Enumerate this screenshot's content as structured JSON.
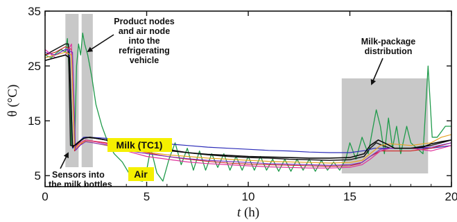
{
  "chart_data": {
    "type": "line",
    "xlabel_symbol": "t",
    "xlabel_unit": " (h)",
    "ylabel": "θ (°C)",
    "xlim": [
      0,
      20
    ],
    "ylim": [
      3,
      35
    ],
    "x_ticks": [
      "0",
      "5",
      "10",
      "15",
      "20"
    ],
    "y_ticks": [
      "5",
      "15",
      "25",
      "35"
    ],
    "shaded_regions": [
      {
        "x": [
          1.0,
          1.65
        ]
      },
      {
        "x": [
          1.8,
          2.35
        ]
      },
      {
        "x": [
          14.6,
          18.85
        ]
      }
    ],
    "annotations": {
      "product_nodes": [
        "Product nodes",
        "and air node",
        "into the",
        "refrigerating",
        "vehicle"
      ],
      "milk_package": [
        "Milk-package",
        "distribution"
      ],
      "sensors": [
        "Sensors into",
        "the milk bottles"
      ],
      "milk_tag": "Milk (TC1)",
      "air_tag": "Air"
    },
    "series": [
      {
        "color": "#1f9a4a",
        "width": 1.3,
        "values": [
          [
            0,
            27
          ],
          [
            0.3,
            26.5
          ],
          [
            0.6,
            27.5
          ],
          [
            0.8,
            28
          ],
          [
            1.0,
            27.5
          ],
          [
            1.1,
            30
          ],
          [
            1.2,
            22
          ],
          [
            1.3,
            10.5
          ],
          [
            1.45,
            10
          ],
          [
            1.55,
            25
          ],
          [
            1.65,
            29
          ],
          [
            1.75,
            27
          ],
          [
            1.85,
            31
          ],
          [
            1.95,
            29
          ],
          [
            2.1,
            27
          ],
          [
            2.3,
            23
          ],
          [
            2.5,
            18
          ],
          [
            2.8,
            14
          ],
          [
            3.1,
            11
          ],
          [
            3.4,
            9
          ],
          [
            3.8,
            7.5
          ],
          [
            4.2,
            5
          ],
          [
            4.5,
            4.2
          ],
          [
            4.8,
            4
          ],
          [
            5.0,
            6
          ],
          [
            5.2,
            10
          ],
          [
            5.5,
            5.5
          ],
          [
            5.8,
            4
          ],
          [
            6.1,
            8
          ],
          [
            6.4,
            11
          ],
          [
            6.7,
            7
          ],
          [
            7.0,
            10
          ],
          [
            7.3,
            6
          ],
          [
            7.6,
            9.5
          ],
          [
            7.9,
            6
          ],
          [
            8.2,
            9
          ],
          [
            8.5,
            6.5
          ],
          [
            8.8,
            9
          ],
          [
            9.1,
            6
          ],
          [
            9.4,
            8.5
          ],
          [
            9.7,
            6
          ],
          [
            10.0,
            8.5
          ],
          [
            10.3,
            6
          ],
          [
            10.6,
            8.5
          ],
          [
            10.9,
            6
          ],
          [
            11.2,
            8
          ],
          [
            11.5,
            5.8
          ],
          [
            11.8,
            8
          ],
          [
            12.1,
            5.8
          ],
          [
            12.4,
            8
          ],
          [
            12.7,
            6
          ],
          [
            13.0,
            8
          ],
          [
            13.3,
            5.8
          ],
          [
            13.6,
            7.8
          ],
          [
            13.9,
            6
          ],
          [
            14.2,
            7.5
          ],
          [
            14.5,
            6
          ],
          [
            14.8,
            8
          ],
          [
            15.0,
            11
          ],
          [
            15.3,
            8
          ],
          [
            15.6,
            12
          ],
          [
            15.9,
            9
          ],
          [
            16.1,
            13
          ],
          [
            16.3,
            17
          ],
          [
            16.5,
            14
          ],
          [
            16.7,
            9
          ],
          [
            16.9,
            15.5
          ],
          [
            17.1,
            10
          ],
          [
            17.3,
            14
          ],
          [
            17.5,
            9
          ],
          [
            17.8,
            14
          ],
          [
            18.0,
            11
          ],
          [
            18.3,
            10
          ],
          [
            18.6,
            9
          ],
          [
            18.85,
            25
          ],
          [
            19.05,
            12
          ],
          [
            19.3,
            12
          ],
          [
            19.5,
            13
          ],
          [
            19.7,
            14
          ],
          [
            20,
            14
          ]
        ]
      },
      {
        "color": "#1a1a1a",
        "width": 1.5,
        "values": [
          [
            0,
            27
          ],
          [
            0.5,
            28
          ],
          [
            1.0,
            29
          ],
          [
            1.15,
            29
          ],
          [
            1.25,
            10.5
          ],
          [
            1.5,
            10.5
          ],
          [
            1.8,
            11.5
          ],
          [
            2.0,
            12
          ],
          [
            2.5,
            11.8
          ],
          [
            3.0,
            11.5
          ],
          [
            4,
            11
          ],
          [
            5,
            10.5
          ],
          [
            6,
            9.8
          ],
          [
            7,
            9.2
          ],
          [
            8,
            8.8
          ],
          [
            9,
            8.5
          ],
          [
            10,
            8.3
          ],
          [
            11,
            8.2
          ],
          [
            12,
            8.0
          ],
          [
            13,
            7.9
          ],
          [
            14,
            7.8
          ],
          [
            15,
            7.9
          ],
          [
            15.7,
            8.5
          ],
          [
            16,
            10
          ],
          [
            16.3,
            11
          ],
          [
            16.6,
            10.5
          ],
          [
            17,
            10
          ],
          [
            17.5,
            10
          ],
          [
            18,
            10
          ],
          [
            18.5,
            10.3
          ],
          [
            19,
            10.5
          ],
          [
            19.5,
            11
          ],
          [
            20,
            11.5
          ]
        ]
      },
      {
        "color": "#2b2bb8",
        "width": 1.2,
        "values": [
          [
            0,
            26.5
          ],
          [
            0.5,
            27
          ],
          [
            1.0,
            28
          ],
          [
            1.2,
            28
          ],
          [
            1.35,
            10
          ],
          [
            1.6,
            11
          ],
          [
            1.9,
            12
          ],
          [
            2.2,
            12
          ],
          [
            3,
            11.8
          ],
          [
            4,
            11.5
          ],
          [
            5,
            11.2
          ],
          [
            6,
            10.8
          ],
          [
            7,
            10.5
          ],
          [
            8,
            10.2
          ],
          [
            9,
            10
          ],
          [
            10,
            9.8
          ],
          [
            11,
            9.6
          ],
          [
            12,
            9.5
          ],
          [
            13,
            9.3
          ],
          [
            14,
            9.2
          ],
          [
            15,
            9.2
          ],
          [
            15.8,
            9.6
          ],
          [
            16.2,
            10
          ],
          [
            17,
            10
          ],
          [
            18,
            10
          ],
          [
            19,
            10
          ],
          [
            20,
            10.5
          ]
        ]
      },
      {
        "color": "#d02020",
        "width": 1.1,
        "values": [
          [
            0,
            27
          ],
          [
            0.5,
            27.5
          ],
          [
            1.0,
            28.5
          ],
          [
            1.3,
            28
          ],
          [
            1.45,
            9.5
          ],
          [
            1.7,
            10.5
          ],
          [
            2.0,
            11.5
          ],
          [
            3,
            11
          ],
          [
            4,
            10
          ],
          [
            5,
            9.2
          ],
          [
            6,
            8.5
          ],
          [
            7,
            8
          ],
          [
            8,
            7.6
          ],
          [
            9,
            7.3
          ],
          [
            10,
            7.1
          ],
          [
            11,
            7
          ],
          [
            12,
            6.9
          ],
          [
            13,
            6.8
          ],
          [
            14,
            6.7
          ],
          [
            15,
            6.8
          ],
          [
            15.5,
            7.2
          ],
          [
            16,
            8.5
          ],
          [
            16.5,
            9.5
          ],
          [
            17,
            9.5
          ],
          [
            18,
            9.5
          ],
          [
            19,
            10
          ],
          [
            19.5,
            10.5
          ],
          [
            20,
            11
          ]
        ]
      },
      {
        "color": "#e0309a",
        "width": 1.2,
        "values": [
          [
            0,
            28
          ],
          [
            0.5,
            26.5
          ],
          [
            1.0,
            27
          ],
          [
            1.3,
            29
          ],
          [
            1.45,
            10
          ],
          [
            1.7,
            11
          ],
          [
            2.0,
            11.5
          ],
          [
            3,
            10.8
          ],
          [
            4,
            9.5
          ],
          [
            5,
            8.5
          ],
          [
            6,
            8
          ],
          [
            7,
            7.5
          ],
          [
            8,
            7.2
          ],
          [
            9,
            7
          ],
          [
            10,
            6.8
          ],
          [
            11,
            6.6
          ],
          [
            12,
            6.5
          ],
          [
            13,
            6.4
          ],
          [
            14,
            6.4
          ],
          [
            15,
            6.5
          ],
          [
            15.6,
            7
          ],
          [
            16,
            8
          ],
          [
            16.5,
            9.5
          ],
          [
            17,
            10
          ],
          [
            18,
            10
          ],
          [
            19,
            9.5
          ],
          [
            19.5,
            10
          ],
          [
            20,
            10.5
          ]
        ]
      },
      {
        "color": "#e6a020",
        "width": 1.2,
        "values": [
          [
            0,
            26.5
          ],
          [
            0.5,
            27
          ],
          [
            1.0,
            27.5
          ],
          [
            1.3,
            27
          ],
          [
            1.45,
            9.8
          ],
          [
            1.7,
            10.8
          ],
          [
            2.0,
            11.3
          ],
          [
            3,
            10.5
          ],
          [
            4,
            9.8
          ],
          [
            5,
            9.3
          ],
          [
            6,
            8.8
          ],
          [
            7,
            8.5
          ],
          [
            8,
            8.2
          ],
          [
            9,
            8
          ],
          [
            10,
            7.8
          ],
          [
            11,
            7.6
          ],
          [
            12,
            7.5
          ],
          [
            13,
            7.4
          ],
          [
            14,
            7.3
          ],
          [
            15,
            7.4
          ],
          [
            15.6,
            7.8
          ],
          [
            16,
            9
          ],
          [
            16.5,
            10.5
          ],
          [
            17,
            10.8
          ],
          [
            18,
            10.5
          ],
          [
            19,
            11
          ],
          [
            19.5,
            12
          ],
          [
            20,
            12.5
          ]
        ]
      },
      {
        "color": "#7a2cc0",
        "width": 1.1,
        "values": [
          [
            0,
            27.5
          ],
          [
            0.5,
            27
          ],
          [
            1.0,
            28
          ],
          [
            1.35,
            27.5
          ],
          [
            1.5,
            9.6
          ],
          [
            1.75,
            10.6
          ],
          [
            2.0,
            11.2
          ],
          [
            3,
            10.6
          ],
          [
            4,
            9.6
          ],
          [
            5,
            9
          ],
          [
            6,
            8.5
          ],
          [
            7,
            8.1
          ],
          [
            8,
            7.8
          ],
          [
            9,
            7.6
          ],
          [
            10,
            7.4
          ],
          [
            11,
            7.2
          ],
          [
            12,
            7.1
          ],
          [
            13,
            7
          ],
          [
            14,
            6.9
          ],
          [
            15,
            7
          ],
          [
            15.6,
            7.4
          ],
          [
            16,
            8.5
          ],
          [
            16.5,
            9.8
          ],
          [
            17,
            10
          ],
          [
            18,
            10
          ],
          [
            19,
            10.2
          ],
          [
            19.5,
            10.6
          ],
          [
            20,
            11
          ]
        ]
      },
      {
        "color": "#0a0a0a",
        "width": 1.6,
        "values": [
          [
            0,
            26
          ],
          [
            0.5,
            26.5
          ],
          [
            1.0,
            27
          ],
          [
            1.2,
            26.5
          ],
          [
            1.35,
            10.2
          ],
          [
            1.6,
            11
          ],
          [
            1.9,
            11.8
          ],
          [
            2.2,
            12
          ],
          [
            3,
            11.5
          ],
          [
            4,
            10.8
          ],
          [
            5,
            10.2
          ],
          [
            6,
            9.6
          ],
          [
            7,
            9.2
          ],
          [
            8,
            8.9
          ],
          [
            9,
            8.7
          ],
          [
            10,
            8.5
          ],
          [
            11,
            8.4
          ],
          [
            12,
            8.3
          ],
          [
            13,
            8.2
          ],
          [
            14,
            8.2
          ],
          [
            15,
            8.3
          ],
          [
            15.7,
            9
          ],
          [
            16,
            10.5
          ],
          [
            16.4,
            11.5
          ],
          [
            16.8,
            10.8
          ],
          [
            17.2,
            10
          ],
          [
            18,
            10
          ],
          [
            18.6,
            10.2
          ],
          [
            19,
            10.8
          ],
          [
            19.5,
            11.2
          ],
          [
            20,
            11.5
          ]
        ]
      }
    ]
  }
}
